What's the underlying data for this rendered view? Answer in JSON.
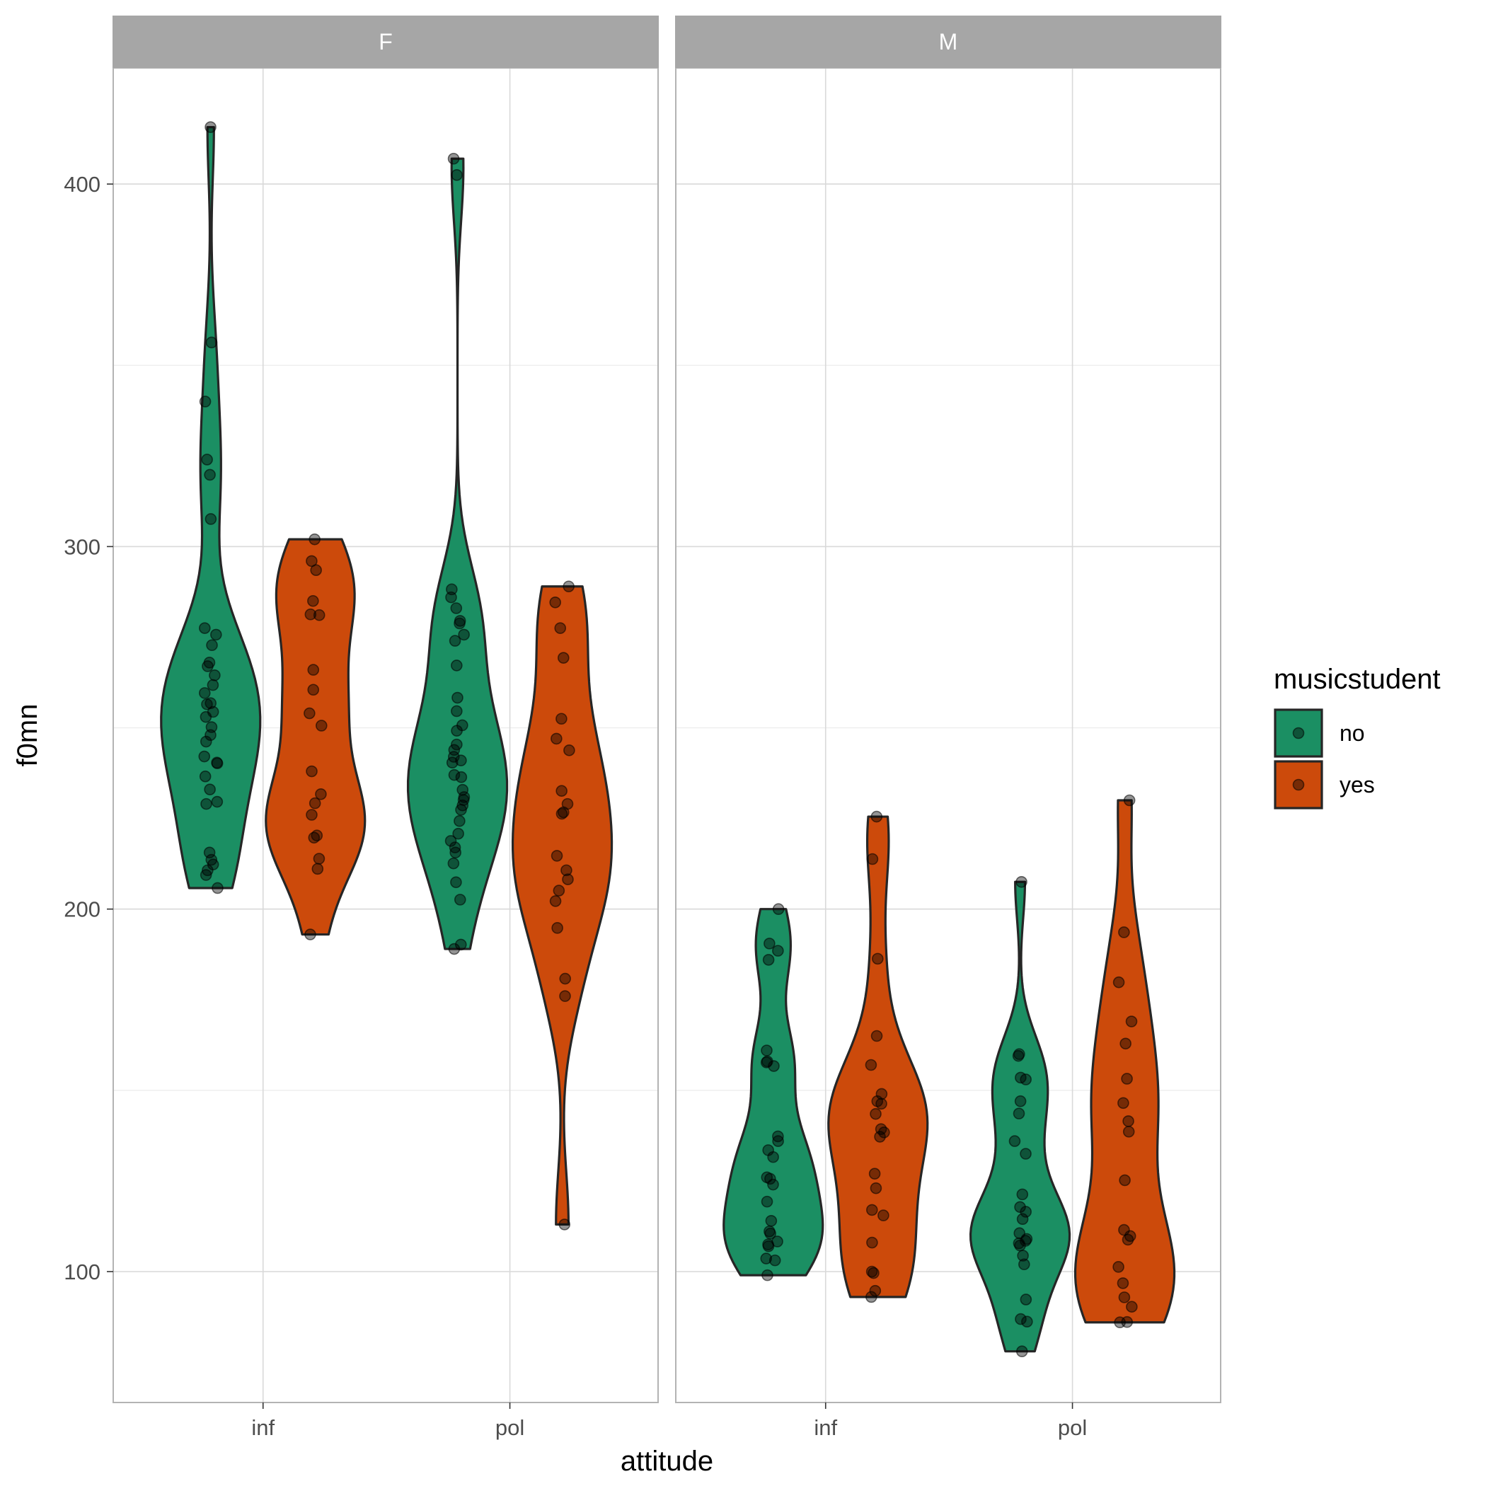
{
  "chart_data": {
    "type": "violin",
    "xlabel": "attitude",
    "ylabel": "f0mn",
    "y_ticks": [
      100,
      200,
      300,
      400
    ],
    "ylim": [
      64,
      432
    ],
    "categories": [
      "inf",
      "pol"
    ],
    "facets": [
      "F",
      "M"
    ],
    "legend": {
      "title": "musicstudent",
      "placement": "right",
      "entries": [
        {
          "name": "no",
          "color": "#1B8F63"
        },
        {
          "name": "yes",
          "color": "#CC4A0B"
        }
      ]
    },
    "panels": [
      {
        "facet": "F",
        "groups": [
          {
            "attitude": "inf",
            "musicstudent": "no",
            "min": 205.8,
            "max": 415.7,
            "values": [
              415.7,
              356.3,
              340.0,
              324.0,
              319.8,
              307.6,
              277.5,
              275.7,
              272.8,
              268.0,
              267.0,
              264.5,
              261.8,
              259.6,
              256.8,
              256.5,
              254.4,
              253.0,
              250.2,
              248.0,
              246.2,
              242.1,
              240.4,
              240.2,
              236.6,
              233.0,
              229.6,
              229.0,
              215.6,
              213.6,
              212.3,
              210.7,
              209.4,
              205.8
            ]
          },
          {
            "attitude": "inf",
            "musicstudent": "yes",
            "min": 193.0,
            "max": 302.0,
            "values": [
              302.0,
              296.0,
              293.5,
              285.0,
              281.3,
              281.1,
              266.0,
              260.5,
              254.0,
              250.6,
              238.0,
              231.7,
              229.2,
              226.0,
              220.3,
              219.7,
              213.9,
              211.1,
              193.0
            ]
          },
          {
            "attitude": "pol",
            "musicstudent": "no",
            "min": 189.0,
            "max": 407.0,
            "values": [
              407.0,
              402.5,
              288.2,
              286.0,
              283.0,
              279.5,
              278.8,
              275.7,
              274.0,
              267.2,
              258.3,
              254.6,
              250.7,
              249.2,
              245.4,
              243.9,
              242.0,
              241.0,
              240.4,
              237.0,
              236.4,
              232.9,
              230.9,
              230.1,
              228.6,
              227.4,
              224.3,
              220.8,
              218.8,
              217.0,
              215.6,
              212.6,
              207.4,
              202.6,
              190.2,
              189.0
            ]
          },
          {
            "attitude": "pol",
            "musicstudent": "yes",
            "min": 113.0,
            "max": 289.0,
            "values": [
              289.0,
              284.6,
              277.5,
              269.3,
              252.5,
              247.0,
              243.8,
              232.6,
              229.0,
              226.7,
              226.3,
              214.7,
              210.7,
              208.2,
              205.1,
              202.2,
              194.8,
              180.8,
              176.0,
              113.0
            ]
          }
        ]
      },
      {
        "facet": "M",
        "groups": [
          {
            "attitude": "inf",
            "musicstudent": "no",
            "min": 99.0,
            "max": 200.0,
            "values": [
              200.0,
              190.5,
              188.5,
              186.0,
              161.0,
              158.0,
              157.7,
              156.7,
              137.3,
              136.0,
              133.5,
              131.6,
              126.0,
              125.6,
              124.0,
              119.3,
              114.0,
              111.1,
              110.5,
              108.3,
              107.5,
              107.0,
              103.6,
              103.1,
              99.0
            ]
          },
          {
            "attitude": "inf",
            "musicstudent": "yes",
            "min": 93.0,
            "max": 225.5,
            "values": [
              225.5,
              213.8,
              186.3,
              165.0,
              157.0,
              149.0,
              147.0,
              146.3,
              143.5,
              138.4,
              139.3,
              137.2,
              127.0,
              123.0,
              117.0,
              115.5,
              108.0,
              100.0,
              99.6,
              94.7,
              93.0
            ]
          },
          {
            "attitude": "pol",
            "musicstudent": "no",
            "min": 78.0,
            "max": 207.5,
            "values": [
              207.5,
              160.0,
              159.5,
              153.5,
              153.0,
              147.0,
              143.6,
              136.0,
              132.5,
              121.3,
              117.8,
              116.5,
              114.5,
              110.6,
              109.0,
              108.5,
              107.8,
              107.2,
              104.4,
              102.0,
              92.3,
              86.9,
              86.2,
              78.0
            ]
          },
          {
            "attitude": "pol",
            "musicstudent": "yes",
            "min": 86.0,
            "max": 230.0,
            "values": [
              230.0,
              193.6,
              179.8,
              169.0,
              162.9,
              153.2,
              146.5,
              141.5,
              138.6,
              125.2,
              111.5,
              109.8,
              108.8,
              101.3,
              96.8,
              92.9,
              90.3,
              86.1,
              86.0
            ]
          }
        ]
      }
    ]
  }
}
